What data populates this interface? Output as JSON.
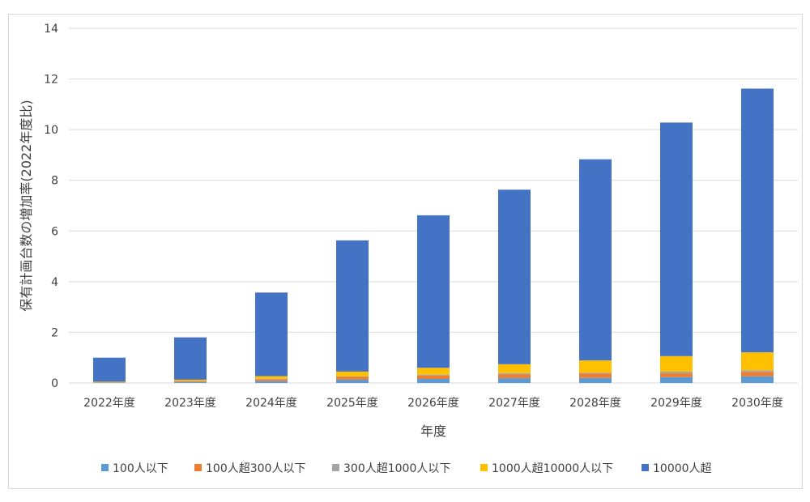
{
  "chart_data": {
    "type": "bar",
    "stacked": true,
    "title": "",
    "xlabel": "年度",
    "ylabel": "保有計画台数の増加率(2022年度比)",
    "ylim": [
      0,
      14
    ],
    "yticks": [
      0,
      2,
      4,
      6,
      8,
      10,
      12,
      14
    ],
    "grid": true,
    "legend_position": "bottom",
    "categories": [
      "2022年度",
      "2023年度",
      "2024年度",
      "2025年度",
      "2026年度",
      "2027年度",
      "2028年度",
      "2029年度",
      "2030年度"
    ],
    "series": [
      {
        "name": "100人以下",
        "color": "#5B9BD5",
        "values": [
          0.01,
          0.03,
          0.07,
          0.13,
          0.16,
          0.19,
          0.2,
          0.23,
          0.26
        ]
      },
      {
        "name": "100人超300人以下",
        "color": "#ED7D31",
        "values": [
          0.01,
          0.03,
          0.07,
          0.11,
          0.13,
          0.15,
          0.18,
          0.15,
          0.18
        ]
      },
      {
        "name": "300人超1000人以下",
        "color": "#A5A5A5",
        "values": [
          0.01,
          0.02,
          0.03,
          0.02,
          0.04,
          0.05,
          0.03,
          0.07,
          0.06
        ]
      },
      {
        "name": "1000人超10000人以下",
        "color": "#FFC000",
        "values": [
          0.02,
          0.05,
          0.1,
          0.19,
          0.27,
          0.35,
          0.48,
          0.61,
          0.71
        ]
      },
      {
        "name": "10000人超",
        "color": "#4472C4",
        "values": [
          0.95,
          1.67,
          3.3,
          5.18,
          6.02,
          6.89,
          7.94,
          9.22,
          10.41
        ]
      }
    ]
  }
}
